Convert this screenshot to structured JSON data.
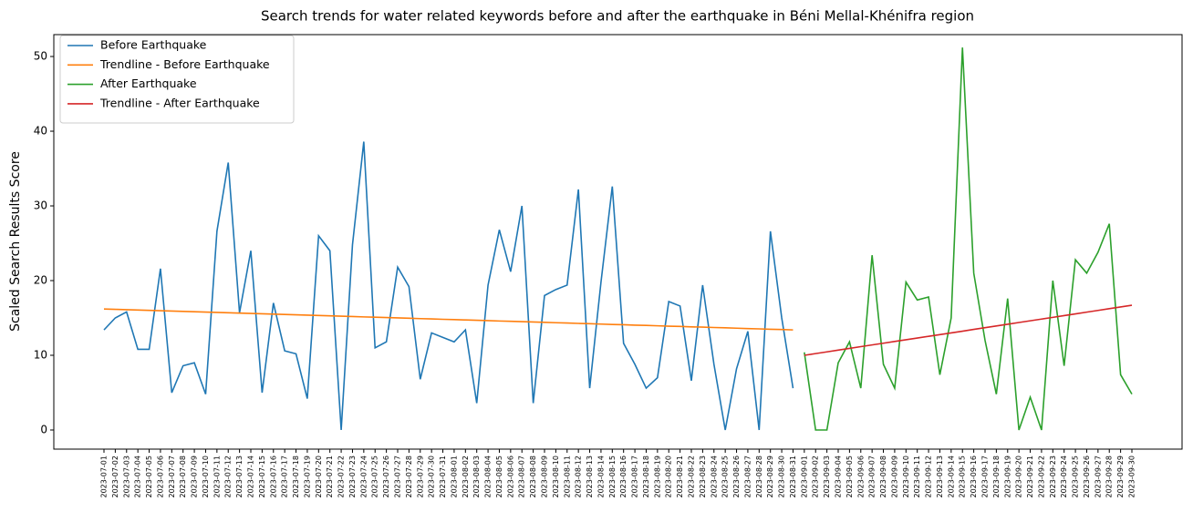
{
  "chart_data": {
    "type": "line",
    "title": "Search trends for water related keywords before and after the earthquake in Béni Mellal-Khénifra region",
    "ylabel": "Scaled Search Results Score",
    "categories": [
      "2023-07-01",
      "2023-07-02",
      "2023-07-03",
      "2023-07-04",
      "2023-07-05",
      "2023-07-06",
      "2023-07-07",
      "2023-07-08",
      "2023-07-09",
      "2023-07-10",
      "2023-07-11",
      "2023-07-12",
      "2023-07-13",
      "2023-07-14",
      "2023-07-15",
      "2023-07-16",
      "2023-07-17",
      "2023-07-18",
      "2023-07-19",
      "2023-07-20",
      "2023-07-21",
      "2023-07-22",
      "2023-07-23",
      "2023-07-24",
      "2023-07-25",
      "2023-07-26",
      "2023-07-27",
      "2023-07-28",
      "2023-07-29",
      "2023-07-30",
      "2023-07-31",
      "2023-08-01",
      "2023-08-02",
      "2023-08-03",
      "2023-08-04",
      "2023-08-05",
      "2023-08-06",
      "2023-08-07",
      "2023-08-08",
      "2023-08-09",
      "2023-08-10",
      "2023-08-11",
      "2023-08-12",
      "2023-08-13",
      "2023-08-14",
      "2023-08-15",
      "2023-08-16",
      "2023-08-17",
      "2023-08-18",
      "2023-08-19",
      "2023-08-20",
      "2023-08-21",
      "2023-08-22",
      "2023-08-23",
      "2023-08-24",
      "2023-08-25",
      "2023-08-26",
      "2023-08-27",
      "2023-08-28",
      "2023-08-29",
      "2023-08-30",
      "2023-08-31",
      "2023-09-01",
      "2023-09-02",
      "2023-09-03",
      "2023-09-04",
      "2023-09-05",
      "2023-09-06",
      "2023-09-07",
      "2023-09-08",
      "2023-09-09",
      "2023-09-10",
      "2023-09-11",
      "2023-09-12",
      "2023-09-13",
      "2023-09-14",
      "2023-09-15",
      "2023-09-16",
      "2023-09-17",
      "2023-09-18",
      "2023-09-19",
      "2023-09-20",
      "2023-09-21",
      "2023-09-22",
      "2023-09-23",
      "2023-09-24",
      "2023-09-25",
      "2023-09-26",
      "2023-09-27",
      "2023-09-28",
      "2023-09-29",
      "2023-09-30"
    ],
    "series": [
      {
        "name": "Before Earthquake",
        "color": "#1f77b4",
        "values": [
          13.4,
          15.0,
          15.8,
          10.8,
          10.8,
          21.6,
          5.0,
          8.6,
          9.0,
          4.8,
          26.6,
          35.8,
          15.7,
          24.0,
          5.0,
          17.0,
          10.6,
          10.2,
          4.2,
          26.0,
          24.0,
          0,
          24.8,
          38.6,
          11.0,
          11.8,
          21.8,
          19.2,
          6.8,
          13.0,
          12.4,
          11.8,
          13.4,
          3.6,
          19.4,
          26.8,
          21.2,
          30.0,
          3.6,
          18.0,
          18.8,
          19.4,
          32.2,
          5.6,
          19.8,
          32.6,
          11.6,
          8.8,
          5.6,
          7.0,
          17.2,
          16.6,
          6.6,
          19.4,
          8.8,
          0,
          8.2,
          13.2,
          0,
          26.6,
          15.0,
          5.6,
          null,
          null,
          null,
          null,
          null,
          null,
          null,
          null,
          null,
          null,
          null,
          null,
          null,
          null,
          null,
          null,
          null,
          null,
          null,
          null,
          null,
          null,
          null,
          null,
          null,
          null,
          null,
          null,
          null,
          null
        ]
      },
      {
        "name": "Trendline - Before Earthquake",
        "color": "#ff7f0e",
        "values": [
          16.2,
          16.15,
          16.11,
          16.06,
          16.02,
          15.97,
          15.92,
          15.88,
          15.83,
          15.79,
          15.74,
          15.7,
          15.65,
          15.6,
          15.56,
          15.51,
          15.47,
          15.42,
          15.37,
          15.33,
          15.28,
          15.24,
          15.19,
          15.14,
          15.1,
          15.05,
          15.01,
          14.96,
          14.91,
          14.87,
          14.82,
          14.78,
          14.73,
          14.69,
          14.64,
          14.59,
          14.55,
          14.5,
          14.46,
          14.41,
          14.36,
          14.32,
          14.27,
          14.23,
          14.18,
          14.13,
          14.09,
          14.04,
          14.0,
          13.95,
          13.9,
          13.86,
          13.81,
          13.77,
          13.72,
          13.68,
          13.63,
          13.58,
          13.54,
          13.49,
          13.45,
          13.4,
          null,
          null,
          null,
          null,
          null,
          null,
          null,
          null,
          null,
          null,
          null,
          null,
          null,
          null,
          null,
          null,
          null,
          null,
          null,
          null,
          null,
          null,
          null,
          null,
          null,
          null,
          null,
          null,
          null,
          null
        ]
      },
      {
        "name": "After Earthquake",
        "color": "#2ca02c",
        "values": [
          null,
          null,
          null,
          null,
          null,
          null,
          null,
          null,
          null,
          null,
          null,
          null,
          null,
          null,
          null,
          null,
          null,
          null,
          null,
          null,
          null,
          null,
          null,
          null,
          null,
          null,
          null,
          null,
          null,
          null,
          null,
          null,
          null,
          null,
          null,
          null,
          null,
          null,
          null,
          null,
          null,
          null,
          null,
          null,
          null,
          null,
          null,
          null,
          null,
          null,
          null,
          null,
          null,
          null,
          null,
          null,
          null,
          null,
          null,
          null,
          null,
          null,
          10.4,
          0,
          0,
          9.0,
          11.8,
          5.6,
          23.4,
          8.8,
          5.6,
          19.8,
          17.4,
          17.8,
          7.4,
          15.0,
          51.2,
          21.0,
          12.0,
          4.8,
          17.6,
          0,
          4.4,
          0,
          20.0,
          8.6,
          22.8,
          21.0,
          23.8,
          27.6,
          7.4,
          4.8
        ]
      },
      {
        "name": "Trendline - After Earthquake",
        "color": "#d62728",
        "values": [
          null,
          null,
          null,
          null,
          null,
          null,
          null,
          null,
          null,
          null,
          null,
          null,
          null,
          null,
          null,
          null,
          null,
          null,
          null,
          null,
          null,
          null,
          null,
          null,
          null,
          null,
          null,
          null,
          null,
          null,
          null,
          null,
          null,
          null,
          null,
          null,
          null,
          null,
          null,
          null,
          null,
          null,
          null,
          null,
          null,
          null,
          null,
          null,
          null,
          null,
          null,
          null,
          null,
          null,
          null,
          null,
          null,
          null,
          null,
          null,
          null,
          null,
          10.0,
          10.23,
          10.46,
          10.69,
          10.92,
          11.16,
          11.39,
          11.62,
          11.85,
          12.08,
          12.31,
          12.54,
          12.77,
          13.0,
          13.23,
          13.47,
          13.7,
          13.93,
          14.16,
          14.39,
          14.62,
          14.85,
          15.08,
          15.31,
          15.54,
          15.78,
          16.01,
          16.24,
          16.47,
          16.7
        ]
      }
    ],
    "ylim": [
      -2.56,
      52.93
    ],
    "yticks": [
      0,
      10,
      20,
      30,
      40,
      50
    ],
    "grid": false,
    "legend": "upper left"
  }
}
